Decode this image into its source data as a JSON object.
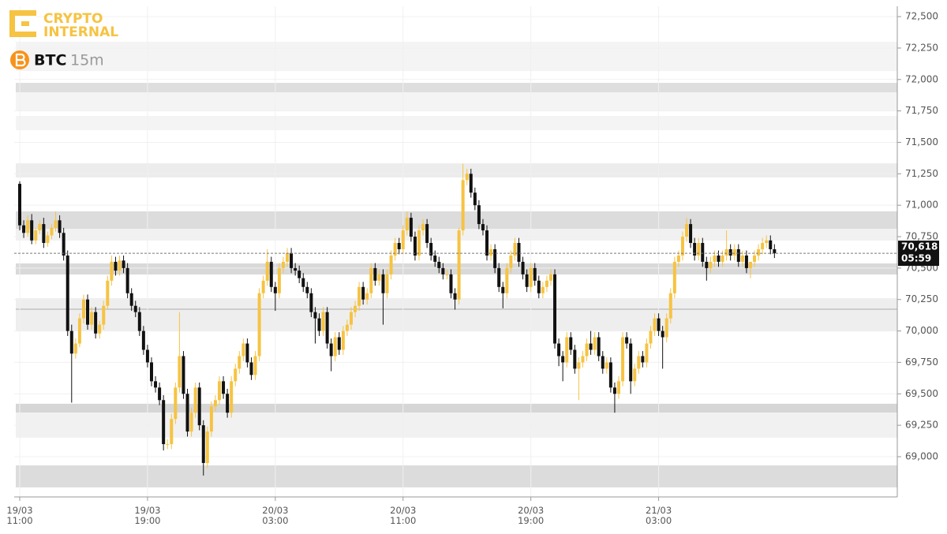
{
  "chart_data": {
    "type": "candlestick",
    "logo": [
      "CRYPTO",
      "INTERNAL"
    ],
    "symbol": "BTC",
    "interval": "15m",
    "open": [
      71170,
      70840,
      70780,
      70880,
      70720,
      70800,
      70850,
      70700,
      70760,
      70820,
      70880,
      70780,
      70600,
      70000,
      69820,
      69900,
      70100,
      70250,
      70050,
      70150,
      69980,
      70050,
      70200,
      70400,
      70550,
      70480,
      70560,
      70500,
      70300,
      70200,
      70150,
      70000,
      69850,
      69750,
      69600,
      69550,
      69450,
      69100,
      69100,
      69300,
      69550,
      69800,
      69500,
      69200,
      69350,
      69550,
      69250,
      68950,
      69200,
      69400,
      69450,
      69600,
      69500,
      69350,
      69600,
      69700,
      69800,
      69900,
      69750,
      69650,
      69800,
      70300,
      70400,
      70550,
      70350,
      70300,
      70500,
      70550,
      70620,
      70500,
      70480,
      70420,
      70350,
      70300,
      70150,
      70100,
      70000,
      70150,
      69900,
      69800,
      69950,
      69850,
      70000,
      70050,
      70150,
      70200,
      70350,
      70250,
      70300,
      70500,
      70400,
      70450,
      70300,
      70450,
      70600,
      70700,
      70650,
      70800,
      70900,
      70750,
      70600,
      70800,
      70850,
      70700,
      70600,
      70550,
      70500,
      70450,
      70450,
      70300,
      70250,
      70800,
      71200,
      71250,
      71100,
      71000,
      70850,
      70800,
      70600,
      70650,
      70500,
      70350,
      70300,
      70500,
      70600,
      70700,
      70550,
      70450,
      70350,
      70500,
      70400,
      70300,
      70350,
      70400,
      70450,
      69900,
      69800,
      69750,
      69950,
      69850,
      69700,
      69750,
      69800,
      69900,
      69850,
      69950,
      69800,
      69700,
      69750,
      69550,
      69500,
      69600,
      69950,
      69900,
      69600,
      69700,
      69800,
      69750,
      69900,
      70000,
      70100,
      70000,
      69950,
      70100,
      70300,
      70550,
      70600,
      70750,
      70850,
      70700,
      70600,
      70700,
      70550,
      70500,
      70550,
      70600,
      70550,
      70600,
      70650,
      70600,
      70650,
      70550,
      70600,
      70500,
      70550,
      70600,
      70650,
      70700,
      70720,
      70650
    ],
    "high": [
      71190,
      70880,
      70920,
      70930,
      70820,
      70880,
      70900,
      70790,
      70850,
      70950,
      70920,
      70820,
      70640,
      70050,
      69940,
      70140,
      70290,
      70290,
      70190,
      70190,
      70080,
      70240,
      70440,
      70600,
      70590,
      70600,
      70600,
      70540,
      70340,
      70240,
      70190,
      70040,
      69890,
      69790,
      69640,
      69590,
      69490,
      69140,
      69340,
      69590,
      70150,
      69840,
      69540,
      69390,
      69590,
      69590,
      69290,
      69240,
      69440,
      69490,
      69640,
      69640,
      69540,
      69640,
      69740,
      69840,
      69940,
      69940,
      69790,
      69840,
      70340,
      70440,
      70650,
      70590,
      70390,
      70540,
      70590,
      70660,
      70660,
      70540,
      70520,
      70460,
      70390,
      70340,
      70190,
      70140,
      70190,
      70190,
      69940,
      69990,
      69990,
      70040,
      70090,
      70190,
      70240,
      70390,
      70390,
      70340,
      70540,
      70540,
      70490,
      70490,
      70490,
      70640,
      70740,
      70740,
      70840,
      70950,
      70940,
      70790,
      70840,
      70890,
      70890,
      70740,
      70640,
      70590,
      70540,
      70490,
      70490,
      70340,
      70820,
      71330,
      71290,
      71290,
      71140,
      71040,
      70890,
      70840,
      70690,
      70690,
      70540,
      70390,
      70540,
      70640,
      70740,
      70740,
      70590,
      70490,
      70540,
      70540,
      70440,
      70390,
      70440,
      70490,
      70490,
      69940,
      69840,
      69990,
      69990,
      69890,
      69790,
      69840,
      69940,
      70000,
      69990,
      69990,
      69840,
      69790,
      69790,
      69590,
      69640,
      69990,
      69990,
      69940,
      69740,
      69840,
      69840,
      69940,
      70040,
      70140,
      70140,
      70040,
      70140,
      70340,
      70590,
      70640,
      70790,
      70900,
      70890,
      70740,
      70740,
      70740,
      70590,
      70590,
      70640,
      70640,
      70640,
      70800,
      70690,
      70690,
      70690,
      70640,
      70640,
      70540,
      70640,
      70690,
      70740,
      70760,
      70760,
      70690
    ],
    "low": [
      70800,
      70740,
      70750,
      70690,
      70690,
      70770,
      70660,
      70670,
      70730,
      70790,
      70740,
      70560,
      69960,
      69430,
      69780,
      69870,
      70060,
      70010,
      70010,
      69940,
      69940,
      70010,
      70170,
      70360,
      70440,
      70440,
      70460,
      70260,
      70160,
      70110,
      69960,
      69810,
      69710,
      69560,
      69510,
      69410,
      69050,
      69060,
      69060,
      69260,
      69510,
      69460,
      69160,
      69160,
      69310,
      69210,
      68850,
      68910,
      69160,
      69360,
      69410,
      69460,
      69310,
      69310,
      69560,
      69660,
      69760,
      69710,
      69610,
      69610,
      69760,
      70260,
      70360,
      70310,
      70160,
      70260,
      70460,
      70510,
      70460,
      70440,
      70380,
      70310,
      70260,
      70110,
      69900,
      69960,
      69960,
      69860,
      69680,
      69760,
      69810,
      69810,
      69960,
      70010,
      70110,
      70160,
      70210,
      70210,
      70260,
      70360,
      70360,
      70050,
      70260,
      70410,
      70560,
      70610,
      70610,
      70760,
      70710,
      70560,
      70560,
      70760,
      70660,
      70560,
      70510,
      70460,
      70410,
      70410,
      70260,
      70170,
      70210,
      70760,
      71160,
      71060,
      70960,
      70810,
      70760,
      70560,
      70560,
      70460,
      70310,
      70180,
      70260,
      70460,
      70560,
      70510,
      70410,
      70310,
      70310,
      70360,
      70260,
      70260,
      70310,
      70360,
      69860,
      69720,
      69600,
      69710,
      69810,
      69660,
      69450,
      69710,
      69760,
      69810,
      69810,
      69760,
      69660,
      69660,
      69510,
      69350,
      69460,
      69560,
      69860,
      69500,
      69560,
      69660,
      69710,
      69710,
      69860,
      69960,
      69960,
      69700,
      69910,
      70060,
      70260,
      70510,
      70560,
      70710,
      70660,
      70560,
      70560,
      70510,
      70400,
      70460,
      70510,
      70510,
      70510,
      70560,
      70560,
      70560,
      70510,
      70510,
      70460,
      70420,
      70510,
      70560,
      70610,
      70660,
      70610,
      70580
    ],
    "close": [
      70840,
      70780,
      70880,
      70720,
      70800,
      70850,
      70700,
      70760,
      70820,
      70880,
      70780,
      70600,
      70000,
      69820,
      69900,
      70100,
      70250,
      70050,
      70150,
      69980,
      70050,
      70200,
      70400,
      70550,
      70480,
      70560,
      70500,
      70300,
      70200,
      70150,
      70000,
      69850,
      69750,
      69600,
      69550,
      69450,
      69100,
      69100,
      69300,
      69550,
      69800,
      69500,
      69200,
      69350,
      69550,
      69250,
      68950,
      69200,
      69400,
      69450,
      69600,
      69500,
      69350,
      69600,
      69700,
      69800,
      69900,
      69750,
      69650,
      69800,
      70300,
      70400,
      70550,
      70350,
      70300,
      70500,
      70550,
      70620,
      70500,
      70480,
      70420,
      70350,
      70300,
      70150,
      70100,
      70000,
      70150,
      69900,
      69800,
      69950,
      69850,
      70000,
      70050,
      70150,
      70200,
      70350,
      70250,
      70300,
      70500,
      70400,
      70450,
      70300,
      70450,
      70600,
      70700,
      70650,
      70800,
      70900,
      70750,
      70600,
      70800,
      70850,
      70700,
      70600,
      70550,
      70500,
      70450,
      70450,
      70300,
      70250,
      70800,
      71200,
      71250,
      71100,
      71000,
      70850,
      70800,
      70600,
      70650,
      70500,
      70350,
      70300,
      70500,
      70600,
      70700,
      70550,
      70450,
      70350,
      70500,
      70400,
      70300,
      70350,
      70400,
      70450,
      69900,
      69800,
      69750,
      69950,
      69850,
      69700,
      69750,
      69800,
      69900,
      69850,
      69950,
      69800,
      69700,
      69750,
      69550,
      69500,
      69600,
      69950,
      69900,
      69600,
      69700,
      69800,
      69750,
      69900,
      70000,
      70100,
      70000,
      69950,
      70100,
      70300,
      70550,
      70600,
      70750,
      70850,
      70700,
      70600,
      70700,
      70550,
      70500,
      70550,
      70600,
      70550,
      70600,
      70650,
      70600,
      70650,
      70550,
      70600,
      70500,
      70550,
      70600,
      70650,
      70700,
      70720,
      70650,
      70618
    ],
    "up_color": "#f6c342",
    "down_color": "#111111",
    "ylim": [
      68680,
      72582
    ],
    "yticks": [
      {
        "value": 69000,
        "label": "69,000"
      },
      {
        "value": 69250,
        "label": "69,250"
      },
      {
        "value": 69500,
        "label": "69,500"
      },
      {
        "value": 69750,
        "label": "69,750"
      },
      {
        "value": 70000,
        "label": "70,000"
      },
      {
        "value": 70250,
        "label": "70,250"
      },
      {
        "value": 70500,
        "label": "70,500"
      },
      {
        "value": 70750,
        "label": "70,750"
      },
      {
        "value": 71000,
        "label": "71,000"
      },
      {
        "value": 71250,
        "label": "71,250"
      },
      {
        "value": 71500,
        "label": "71,500"
      },
      {
        "value": 71750,
        "label": "71,750"
      },
      {
        "value": 72000,
        "label": "72,000"
      },
      {
        "value": 72250,
        "label": "72,250"
      },
      {
        "value": 72500,
        "label": "72,500"
      }
    ],
    "xticks": [
      {
        "value": 0,
        "label": "19/03 11:00"
      },
      {
        "value": 32,
        "label": "19/03 19:00"
      },
      {
        "value": 64,
        "label": "20/03 03:00"
      },
      {
        "value": 96,
        "label": "20/03 11:00"
      },
      {
        "value": 128,
        "label": "20/03 19:00"
      },
      {
        "value": 160,
        "label": "21/03 03:00"
      }
    ],
    "zones": [
      {
        "low": 72067,
        "high": 72300,
        "color": "#f4f4f4"
      },
      {
        "low": 71898,
        "high": 71973,
        "color": "#dedede"
      },
      {
        "low": 71754,
        "high": 71898,
        "color": "#f4f4f4"
      },
      {
        "low": 71597,
        "high": 71710,
        "color": "#f4f4f4"
      },
      {
        "low": 71221,
        "high": 71333,
        "color": "#ececec"
      },
      {
        "low": 70813,
        "high": 70951,
        "color": "#dcdcdc"
      },
      {
        "low": 70719,
        "high": 70813,
        "color": "#f1f1f1"
      },
      {
        "low": 70449,
        "high": 70537,
        "color": "#d9d9d9"
      },
      {
        "low": 69997,
        "high": 70261,
        "color": "#eeeeee"
      },
      {
        "low": 70168,
        "high": 70178,
        "color": "#c4c4c4"
      },
      {
        "low": 69351,
        "high": 69421,
        "color": "#d6d6d6"
      },
      {
        "low": 69151,
        "high": 69351,
        "color": "#f1f1f1"
      },
      {
        "low": 68756,
        "high": 68931,
        "color": "#dcdcdc"
      }
    ],
    "grid": true,
    "last_price": {
      "value": 70618,
      "label": "70,618"
    },
    "countdown": "05:59"
  }
}
